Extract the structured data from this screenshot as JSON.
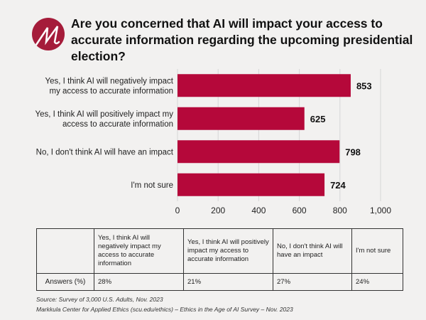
{
  "title": "Are you concerned that AI will impact your access to accurate information regarding the upcoming presidential election?",
  "logo_text": "M",
  "colors": {
    "bar": "#b5083a",
    "logo": "#a51c3a",
    "background": "#f2f1f0"
  },
  "chart_data": {
    "type": "bar",
    "orientation": "horizontal",
    "categories": [
      [
        "Yes, I think AI will negatively impact",
        "my access to accurate information"
      ],
      [
        "Yes, I think AI will positively impact my",
        "access to accurate information"
      ],
      [
        "No, I don't think AI will have an impact"
      ],
      [
        "I'm not sure"
      ]
    ],
    "values": [
      853,
      625,
      798,
      724
    ],
    "xlim": [
      0,
      1000
    ],
    "xticks": [
      "0",
      "200",
      "400",
      "600",
      "800",
      "1,000"
    ],
    "grid": true
  },
  "table": {
    "headers": [
      "",
      "Yes, I think AI will negatively impact my access to accurate information",
      "Yes, I think AI will positively impact my access to accurate information",
      "No, I don't think AI will have an impact",
      "I'm not sure"
    ],
    "row_label": "Answers (%)",
    "values": [
      "28%",
      "21%",
      "27%",
      "24%"
    ]
  },
  "source": "Source: Survey of 3,000 U.S. Adults, Nov. 2023",
  "credit": "Markkula Center for Applied Ethics  (scu.edu/ethics) –  Ethics in the Age of AI Survey – Nov. 2023"
}
